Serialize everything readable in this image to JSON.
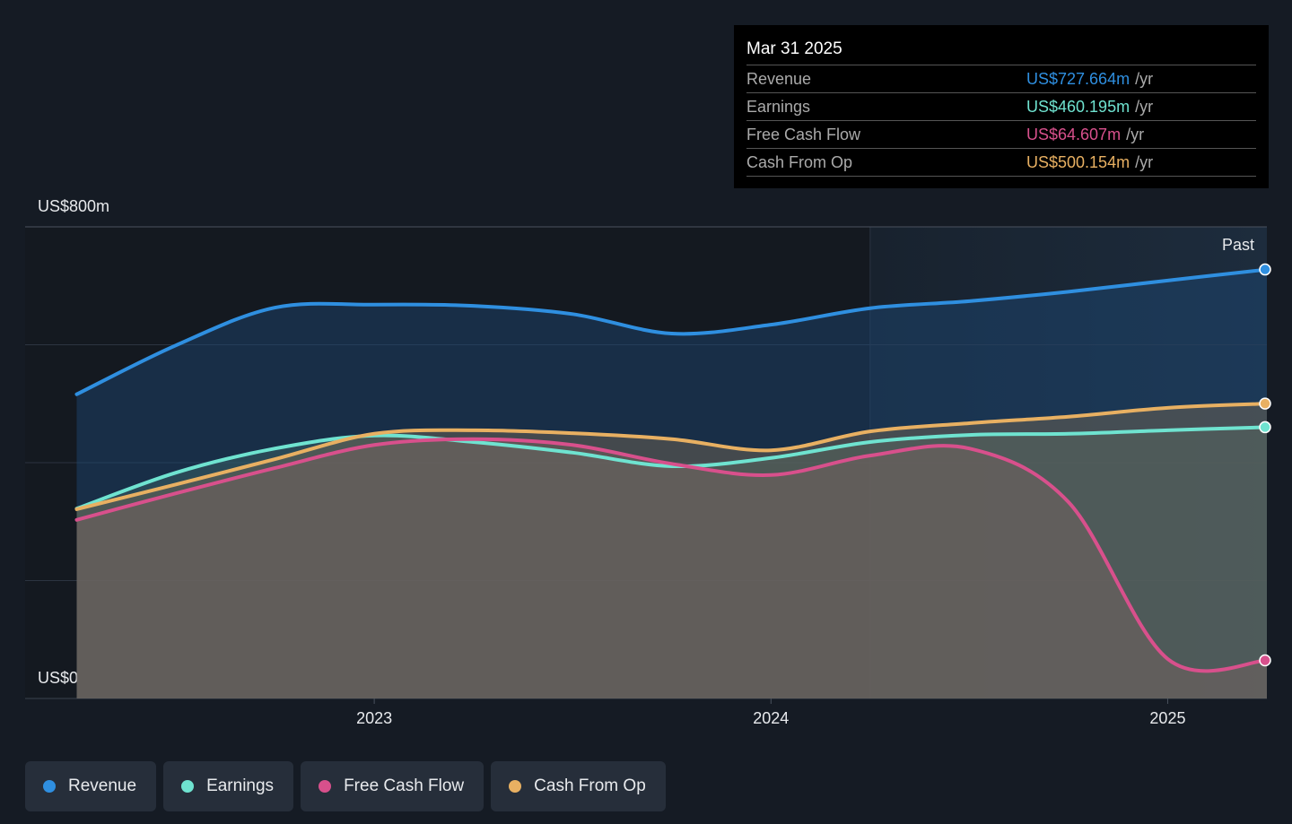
{
  "chart_data": {
    "type": "line",
    "x": [
      2022.25,
      2022.5,
      2022.75,
      2023,
      2023.25,
      2023.5,
      2023.75,
      2024,
      2024.25,
      2024.5,
      2024.75,
      2025,
      2025.25
    ],
    "xlim": [
      2022.12,
      2025.25
    ],
    "xticks": [
      2023,
      2024,
      2025
    ],
    "ylim": [
      0,
      800
    ],
    "yticks": [
      {
        "value": 0,
        "label": "US$0"
      },
      {
        "value": 200,
        "label": null
      },
      {
        "value": 400,
        "label": null
      },
      {
        "value": 600,
        "label": null
      },
      {
        "value": 800,
        "label": "US$800m"
      }
    ],
    "grid": true,
    "shade_from": 2024.25,
    "shade_label": "Past",
    "series": [
      {
        "name": "Revenue",
        "color": "#2f8fe0",
        "values": [
          516,
          599,
          663,
          668,
          666,
          652,
          619,
          634,
          662,
          674,
          690,
          709,
          727.664
        ]
      },
      {
        "name": "Earnings",
        "color": "#6fe3d0",
        "values": [
          322,
          383,
          424,
          446,
          435,
          417,
          394,
          408,
          435,
          447,
          449,
          455,
          460.195
        ]
      },
      {
        "name": "Free Cash Flow",
        "color": "#d8508c",
        "values": [
          303,
          348,
          391,
          430,
          440,
          430,
          398,
          379,
          412,
          424,
          333,
          67,
          64.607
        ]
      },
      {
        "name": "Cash From Op",
        "color": "#e8b062",
        "values": [
          321,
          363,
          406,
          449,
          455,
          450,
          440,
          421,
          453,
          467,
          478,
          493,
          500.154
        ]
      }
    ],
    "tooltip": {
      "title": "Mar 31 2025",
      "rows": [
        {
          "label": "Revenue",
          "value": "US$727.664m",
          "unit": "/yr"
        },
        {
          "label": "Earnings",
          "value": "US$460.195m",
          "unit": "/yr"
        },
        {
          "label": "Free Cash Flow",
          "value": "US$64.607m",
          "unit": "/yr"
        },
        {
          "label": "Cash From Op",
          "value": "US$500.154m",
          "unit": "/yr"
        }
      ]
    }
  }
}
